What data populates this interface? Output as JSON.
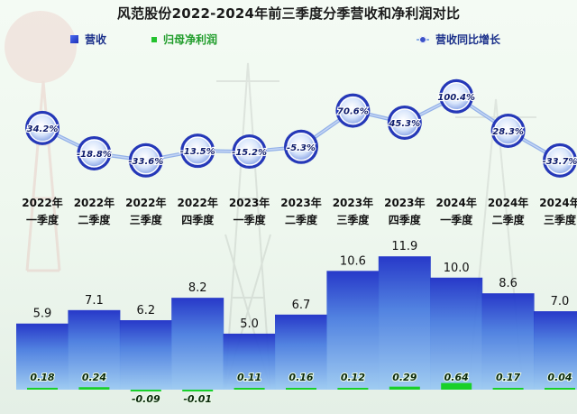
{
  "chart_data": {
    "type": "bar",
    "title": "风范股份2022-2024年前三季度分季营收和净利润对比",
    "categories": [
      [
        "2022年",
        "一季度"
      ],
      [
        "2022年",
        "二季度"
      ],
      [
        "2022年",
        "三季度"
      ],
      [
        "2022年",
        "四季度"
      ],
      [
        "2023年",
        "一季度"
      ],
      [
        "2023年",
        "二季度"
      ],
      [
        "2023年",
        "三季度"
      ],
      [
        "2023年",
        "四季度"
      ],
      [
        "2024年",
        "一季度"
      ],
      [
        "2024年",
        "二季度"
      ],
      [
        "2024年",
        "三季度"
      ]
    ],
    "series": [
      {
        "name": "营收",
        "type": "bar",
        "values": [
          5.9,
          7.1,
          6.2,
          8.2,
          5.0,
          6.7,
          10.6,
          11.9,
          10.0,
          8.6,
          7.0
        ],
        "labels": [
          "5.9",
          "7.1",
          "6.2",
          "8.2",
          "5.0",
          "6.7",
          "10.6",
          "11.9",
          "10.0",
          "8.6",
          "7.0"
        ]
      },
      {
        "name": "归母净利润",
        "type": "bar",
        "values": [
          0.18,
          0.24,
          -0.09,
          -0.01,
          0.11,
          0.16,
          0.12,
          0.29,
          0.64,
          0.17,
          0.04
        ],
        "labels": [
          "0.18",
          "0.24",
          "-0.09",
          "-0.01",
          "0.11",
          "0.16",
          "0.12",
          "0.29",
          "0.64",
          "0.17",
          "0.04"
        ]
      },
      {
        "name": "营收同比增长",
        "type": "line",
        "unit": "%",
        "values": [
          34.2,
          -18.8,
          -33.6,
          -13.5,
          -15.2,
          -5.3,
          70.6,
          45.3,
          100.4,
          28.3,
          -33.7
        ],
        "labels": [
          "34.2%",
          "-18.8%",
          "-33.6%",
          "-13.5%",
          "-15.2%",
          "-5.3%",
          "70.6%",
          "45.3%",
          "100.4%",
          "28.3%",
          "-33.7%"
        ]
      }
    ],
    "colors": {
      "revenue_top": "#1d2fc7",
      "revenue_bottom": "#8fc0f0",
      "profit": "#19d02a",
      "line": "#8fb0e6",
      "marker_ring": "#2538b8"
    },
    "legend": "top"
  }
}
